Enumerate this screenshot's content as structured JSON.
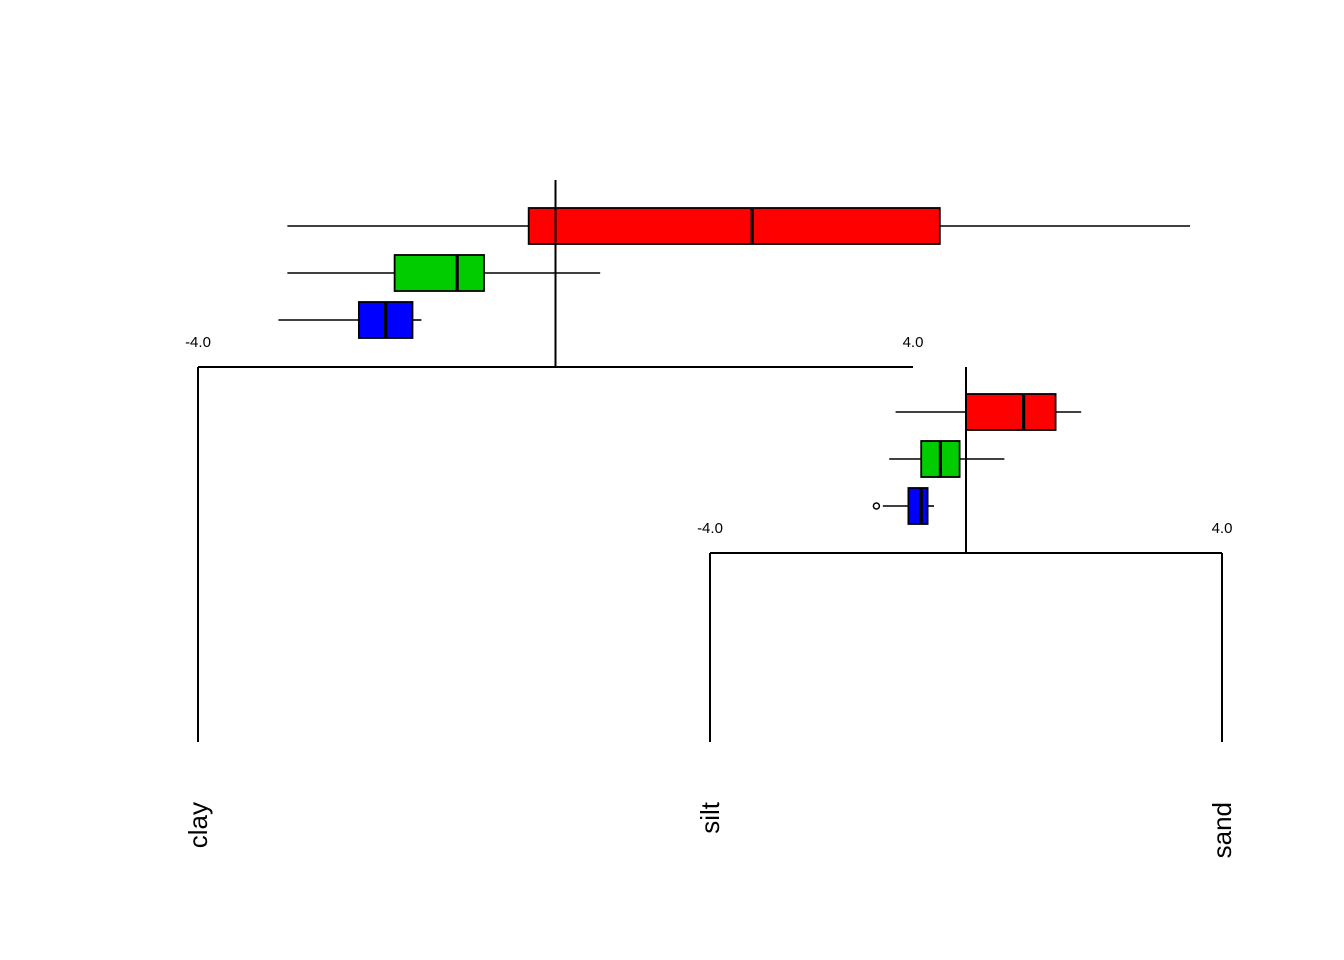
{
  "chart_data": {
    "type": "balance-dendrogram",
    "title": "",
    "leaves": [
      {
        "id": "clay",
        "label": "clay"
      },
      {
        "id": "silt",
        "label": "silt"
      },
      {
        "id": "sand",
        "label": "sand"
      }
    ],
    "series_colors": [
      "#ff0000",
      "#00cc00",
      "#0000ff"
    ],
    "nodes": [
      {
        "id": "node1",
        "left_child": "clay",
        "right_child": "node2",
        "range": [
          -4.0,
          4.0
        ],
        "range_labels": [
          "-4.0",
          "4.0"
        ],
        "boxplots": [
          {
            "color": "#ff0000",
            "min": -3.0,
            "q1": -0.3,
            "median": 2.2,
            "q3": 4.3,
            "max": 7.1
          },
          {
            "color": "#00cc00",
            "min": -3.0,
            "q1": -1.8,
            "median": -1.1,
            "q3": -0.8,
            "max": 0.5
          },
          {
            "color": "#0000ff",
            "min": -3.1,
            "q1": -2.2,
            "median": -1.9,
            "q3": -1.6,
            "max": -1.5
          }
        ]
      },
      {
        "id": "node2",
        "left_child": "silt",
        "right_child": "sand",
        "range": [
          -4.0,
          4.0
        ],
        "range_labels": [
          "-4.0",
          "4.0"
        ],
        "boxplots": [
          {
            "color": "#ff0000",
            "min": -1.1,
            "q1": 0.0,
            "median": 0.9,
            "q3": 1.4,
            "max": 1.8
          },
          {
            "color": "#00cc00",
            "min": -1.2,
            "q1": -0.7,
            "median": -0.4,
            "q3": -0.1,
            "max": 0.6
          },
          {
            "color": "#0000ff",
            "min": -1.3,
            "q1": -0.9,
            "median": -0.7,
            "q3": -0.6,
            "max": -0.5,
            "outliers": [
              -1.4
            ]
          }
        ]
      }
    ]
  }
}
